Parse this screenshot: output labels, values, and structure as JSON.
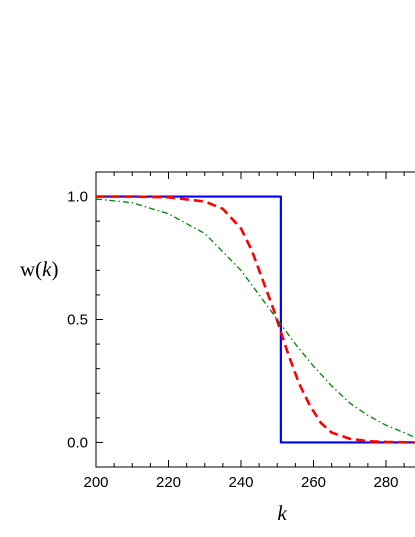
{
  "chart_data": {
    "type": "line",
    "xlabel": "k",
    "ylabel": {
      "prefix": "w(",
      "var": "k",
      "suffix": ")"
    },
    "xlim": [
      200,
      288
    ],
    "ylim": [
      -0.1,
      1.1
    ],
    "xticks": [
      200,
      220,
      240,
      260,
      280
    ],
    "yticks": [
      0.0,
      0.5,
      1.0
    ],
    "xtick_labels": [
      "200",
      "220",
      "240",
      "260",
      "280"
    ],
    "ytick_labels": [
      "0.0",
      "0.5",
      "1.0"
    ],
    "x_minor_step": 5,
    "y_minor_step": 0.1,
    "grid": false,
    "series": [
      {
        "style": "solid",
        "color": "#0000ff",
        "x": [
          200,
          251,
          251,
          288
        ],
        "y": [
          1.0,
          1.0,
          0.0,
          0.0
        ]
      },
      {
        "style": "dashed",
        "color": "#ff0000",
        "x": [
          200,
          210,
          220,
          230,
          235,
          240,
          243,
          246,
          249,
          251,
          253,
          256,
          259,
          262,
          265,
          270,
          275,
          280,
          288
        ],
        "y": [
          1.0,
          1.0,
          0.997,
          0.98,
          0.95,
          0.87,
          0.78,
          0.66,
          0.54,
          0.45,
          0.36,
          0.24,
          0.15,
          0.08,
          0.04,
          0.015,
          0.005,
          0.002,
          0.0
        ]
      },
      {
        "style": "dashdot",
        "color": "#008000",
        "x": [
          200,
          210,
          220,
          230,
          240,
          245,
          250,
          255,
          260,
          265,
          270,
          275,
          280,
          285,
          288
        ],
        "y": [
          0.99,
          0.975,
          0.93,
          0.85,
          0.7,
          0.6,
          0.5,
          0.4,
          0.31,
          0.23,
          0.16,
          0.11,
          0.07,
          0.04,
          0.02
        ]
      }
    ]
  }
}
